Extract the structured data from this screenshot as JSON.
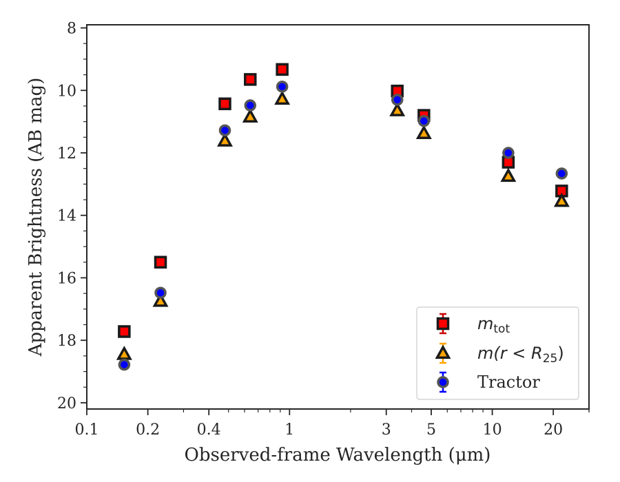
{
  "chart_data": {
    "type": "scatter",
    "title": "",
    "xlabel": "Observed-frame Wavelength (μm)",
    "ylabel": "Apparent Brightness (AB mag)",
    "x_scale": "log",
    "xlim": [
      0.1,
      30
    ],
    "ylim": [
      20.2,
      7.9
    ],
    "y_inverted": true,
    "grid": false,
    "legend_position": "lower right",
    "x_ticks": [
      {
        "value": 0.1,
        "label": "0.1"
      },
      {
        "value": 0.2,
        "label": "0.2"
      },
      {
        "value": 0.4,
        "label": "0.4"
      },
      {
        "value": 1,
        "label": "1"
      },
      {
        "value": 3,
        "label": "3"
      },
      {
        "value": 5,
        "label": "5"
      },
      {
        "value": 10,
        "label": "10"
      },
      {
        "value": 20,
        "label": "20"
      }
    ],
    "y_ticks": [
      {
        "value": 8,
        "label": "8"
      },
      {
        "value": 10,
        "label": "10"
      },
      {
        "value": 12,
        "label": "12"
      },
      {
        "value": 14,
        "label": "14"
      },
      {
        "value": 16,
        "label": "16"
      },
      {
        "value": 18,
        "label": "18"
      },
      {
        "value": 20,
        "label": "20"
      }
    ],
    "series": [
      {
        "name": "m_tot",
        "label_main": "m",
        "label_sub": "tot",
        "marker": "square",
        "color": "#ff0000",
        "edge_color": "#1a1a1a",
        "errorbar_color": "#cc0000",
        "x": [
          0.153,
          0.231,
          0.48,
          0.64,
          0.92,
          3.4,
          4.6,
          12.0,
          22.0
        ],
        "y": [
          17.72,
          15.5,
          10.43,
          9.65,
          9.33,
          10.02,
          10.8,
          12.3,
          13.22
        ]
      },
      {
        "name": "m(r < R25)",
        "label_prefix": "m(",
        "label_var": "r",
        "label_op": " < ",
        "label_var2": "R",
        "label_sub": "25",
        "label_suffix": ")",
        "marker": "triangle",
        "color": "#ffa500",
        "edge_color": "#1a1a1a",
        "errorbar_color": "#ffa500",
        "x": [
          0.153,
          0.231,
          0.48,
          0.64,
          0.92,
          3.4,
          4.6,
          12.0,
          22.0
        ],
        "y": [
          18.45,
          16.75,
          11.62,
          10.85,
          10.28,
          10.65,
          11.38,
          12.75,
          13.55
        ]
      },
      {
        "name": "Tractor",
        "marker": "circle",
        "color": "#0000ff",
        "edge_color": "#555555",
        "errorbar_color": "#0000ff",
        "x": [
          0.153,
          0.231,
          0.48,
          0.64,
          0.92,
          3.4,
          4.6,
          12.0,
          22.0
        ],
        "y": [
          18.78,
          16.48,
          11.28,
          10.48,
          9.88,
          10.3,
          10.98,
          12.0,
          12.66
        ]
      }
    ]
  }
}
